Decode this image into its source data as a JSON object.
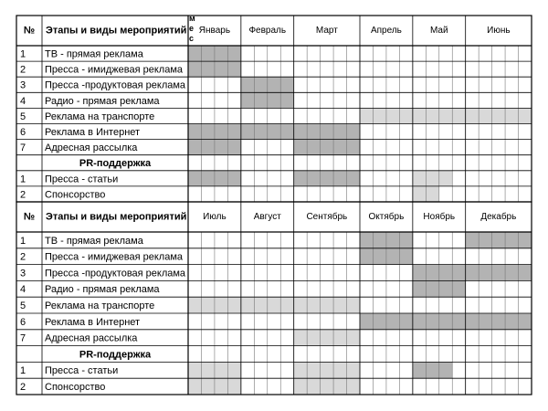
{
  "sections": [
    {
      "header": {
        "number": "№",
        "stages": "Этапы и виды мероприятий",
        "note": "мес"
      },
      "months": [
        {
          "name": "Январь",
          "weeks": 4
        },
        {
          "name": "Февраль",
          "weeks": 4
        },
        {
          "name": "Март",
          "weeks": 5
        },
        {
          "name": "Апрель",
          "weeks": 4
        },
        {
          "name": "Май",
          "weeks": 4
        },
        {
          "name": "Июнь",
          "weeks": 5
        }
      ],
      "rows": [
        {
          "number": "1",
          "label": "ТВ - прямая реклама",
          "shaded": [
            {
              "start": 0,
              "end": 3,
              "color": "#b3b3b3"
            }
          ]
        },
        {
          "number": "2",
          "label": "Пресса - имиджевая реклама",
          "shaded": [
            {
              "start": 0,
              "end": 3,
              "color": "#b3b3b3"
            }
          ]
        },
        {
          "number": "3",
          "label": "Пресса -продуктовая реклама",
          "shaded": [
            {
              "start": 4,
              "end": 7,
              "color": "#b3b3b3"
            }
          ]
        },
        {
          "number": "4",
          "label": "Радио - прямая реклама",
          "shaded": [
            {
              "start": 4,
              "end": 7,
              "color": "#b3b3b3"
            }
          ]
        },
        {
          "number": "5",
          "label": "Реклама на транспорте",
          "shaded": [
            {
              "start": 13,
              "end": 25,
              "color": "#d9d9d9"
            }
          ]
        },
        {
          "number": "6",
          "label": "Реклама в Интернет",
          "shaded": [
            {
              "start": 0,
              "end": 12,
              "color": "#b3b3b3"
            }
          ]
        },
        {
          "number": "7",
          "label": "Адресная рассылка",
          "shaded": [
            {
              "start": 0,
              "end": 3,
              "color": "#b3b3b3"
            },
            {
              "start": 8,
              "end": 12,
              "color": "#b3b3b3"
            }
          ]
        },
        {
          "label": "PR-поддержка"
        },
        {
          "number": "1",
          "label": "Пресса - статьи",
          "shaded": [
            {
              "start": 0,
              "end": 3,
              "color": "#b3b3b3"
            },
            {
              "start": 8,
              "end": 12,
              "color": "#b3b3b3"
            },
            {
              "start": 17,
              "end": 19,
              "color": "#d9d9d9"
            }
          ]
        },
        {
          "number": "2",
          "label": "Спонсорство",
          "shaded": [
            {
              "start": 17,
              "end": 18,
              "color": "#d9d9d9"
            }
          ]
        }
      ]
    },
    {
      "header": {
        "number": "№",
        "stages": "Этапы и виды мероприятий"
      },
      "months": [
        {
          "name": "Июль",
          "weeks": 4
        },
        {
          "name": "Август",
          "weeks": 4
        },
        {
          "name": "Сентябрь",
          "weeks": 5
        },
        {
          "name": "Октябрь",
          "weeks": 4
        },
        {
          "name": "Ноябрь",
          "weeks": 4
        },
        {
          "name": "Декабрь",
          "weeks": 5
        }
      ],
      "rows": [
        {
          "number": "1",
          "label": "ТВ - прямая реклама",
          "shaded": [
            {
              "start": 13,
              "end": 16,
              "color": "#b3b3b3"
            },
            {
              "start": 21,
              "end": 25,
              "color": "#b3b3b3"
            }
          ]
        },
        {
          "number": "2",
          "label": "Пресса - имиджевая реклама",
          "shaded": [
            {
              "start": 13,
              "end": 16,
              "color": "#b3b3b3"
            }
          ]
        },
        {
          "number": "3",
          "label": "Пресса -продуктовая реклама",
          "shaded": [
            {
              "start": 17,
              "end": 25,
              "color": "#b3b3b3"
            }
          ]
        },
        {
          "number": "4",
          "label": "Радио - прямая реклама",
          "shaded": [
            {
              "start": 17,
              "end": 20,
              "color": "#b3b3b3"
            }
          ]
        },
        {
          "number": "5",
          "label": "Реклама на транспорте",
          "shaded": [
            {
              "start": 0,
              "end": 12,
              "color": "#d9d9d9"
            }
          ]
        },
        {
          "number": "6",
          "label": "Реклама в Интернет",
          "shaded": [
            {
              "start": 13,
              "end": 25,
              "color": "#b3b3b3"
            }
          ]
        },
        {
          "number": "7",
          "label": "Адресная рассылка",
          "shaded": [
            {
              "start": 8,
              "end": 12,
              "color": "#d9d9d9"
            }
          ]
        },
        {
          "label": "PR-поддержка"
        },
        {
          "number": "1",
          "label": "Пресса - статьи",
          "shaded": [
            {
              "start": 0,
              "end": 3,
              "color": "#d9d9d9"
            },
            {
              "start": 8,
              "end": 12,
              "color": "#d9d9d9"
            },
            {
              "start": 17,
              "end": 19,
              "color": "#b3b3b3"
            }
          ]
        },
        {
          "number": "2",
          "label": "Спонсорство",
          "shaded": [
            {
              "start": 0,
              "end": 3,
              "color": "#d9d9d9"
            },
            {
              "start": 8,
              "end": 12,
              "color": "#d9d9d9"
            }
          ]
        }
      ]
    }
  ]
}
